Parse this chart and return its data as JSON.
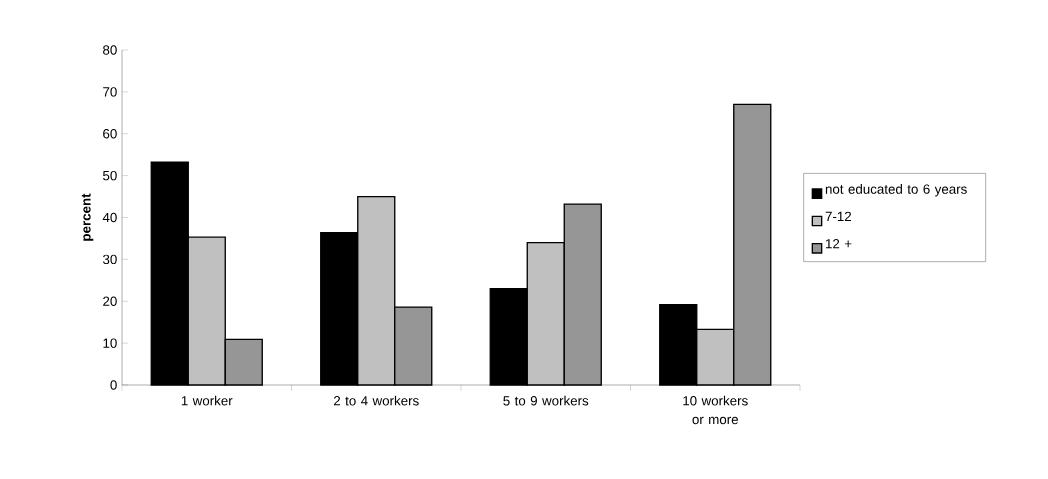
{
  "chart_data": {
    "type": "bar",
    "ylabel": "percent",
    "categories": [
      "1 worker",
      "2 to 4 workers",
      "5 to 9 workers",
      "10 workers or more"
    ],
    "series": [
      {
        "name": "not educated to 6 years",
        "color": "#000000",
        "values": [
          53.2,
          36.4,
          23.0,
          19.2
        ]
      },
      {
        "name": "7-12",
        "color": "#c0c0c0",
        "values": [
          35.3,
          45.0,
          34.0,
          13.3
        ]
      },
      {
        "name": "12 +",
        "color": "#969696",
        "values": [
          10.9,
          18.6,
          43.2,
          67.0
        ]
      }
    ],
    "ylim": [
      0,
      80
    ],
    "yticks": [
      0,
      10,
      20,
      30,
      40,
      50,
      60,
      70,
      80
    ],
    "legend": "right"
  }
}
